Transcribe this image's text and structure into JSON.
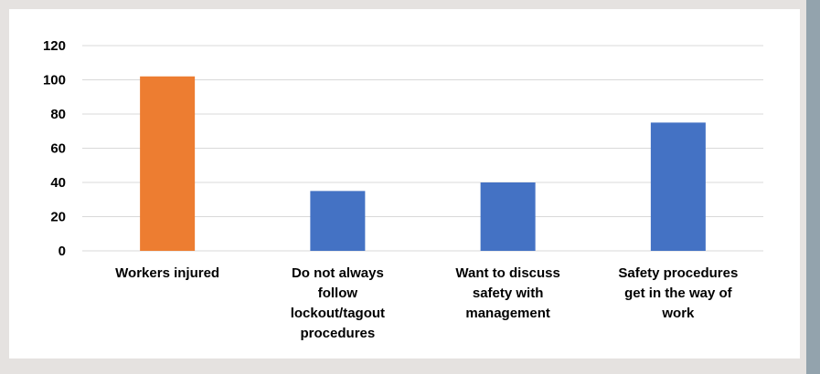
{
  "colors": {
    "background": "#e5e2e0",
    "panel": "#ffffff",
    "side_bar": "#93a3ad",
    "highlight_bar": "#ed7d31",
    "default_bar": "#4472c4",
    "gridline": "#d9d9d9"
  },
  "chart_data": {
    "type": "bar",
    "categories": [
      [
        "Workers injured"
      ],
      [
        "Do not always",
        "follow",
        "lockout/tagout",
        "procedures"
      ],
      [
        "Want to discuss",
        "safety with",
        "management"
      ],
      [
        "Safety procedures",
        "get in the way of",
        "work"
      ]
    ],
    "values": [
      102,
      35,
      40,
      75
    ],
    "bar_colors": [
      "#ed7d31",
      "#4472c4",
      "#4472c4",
      "#4472c4"
    ],
    "ylim": [
      0,
      120
    ],
    "yticks": [
      0,
      20,
      40,
      60,
      80,
      100,
      120
    ],
    "grid": true,
    "legend": "none",
    "title": "",
    "xlabel": "",
    "ylabel": ""
  }
}
